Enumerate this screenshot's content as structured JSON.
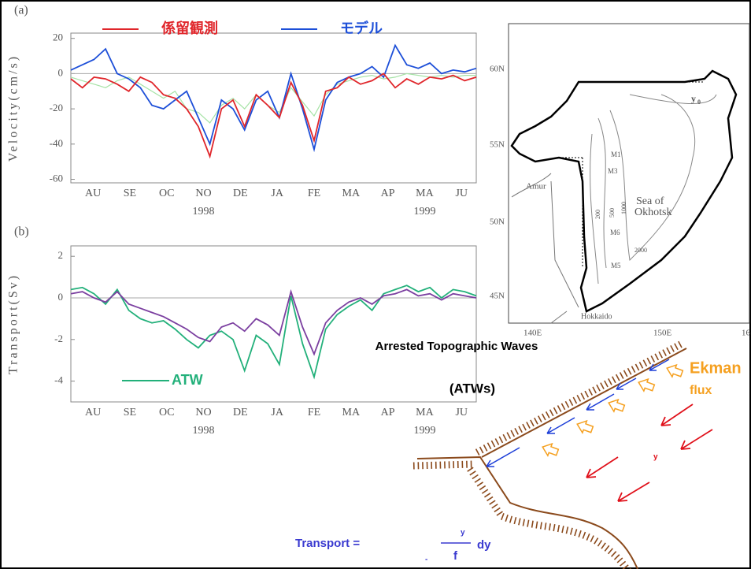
{
  "chart_a": {
    "type": "line",
    "label": "(a)",
    "y_label": "Velocity(cm/s)",
    "ylim": [
      -62,
      23
    ],
    "yticks": [
      -60,
      -40,
      -20,
      0,
      20
    ],
    "months": [
      "AU",
      "SE",
      "OC",
      "NO",
      "DE",
      "JA",
      "FE",
      "MA",
      "AP",
      "MA",
      "JU"
    ],
    "years": [
      "1998",
      "1999"
    ],
    "series": [
      {
        "name": "係留観測",
        "color": "#e0262b",
        "values": [
          -3,
          -8,
          -2,
          -3,
          -6,
          -10,
          -2,
          -5,
          -12,
          -14,
          -20,
          -30,
          -47,
          -20,
          -15,
          -30,
          -12,
          -18,
          -25,
          -5,
          -18,
          -38,
          -10,
          -8,
          -2,
          -6,
          -4,
          0,
          -8,
          -3,
          -6,
          -2,
          -3,
          -1,
          -4,
          -2
        ]
      },
      {
        "name": "モデル",
        "color": "#1d4fd8",
        "values": [
          2,
          5,
          8,
          14,
          0,
          -3,
          -8,
          -18,
          -20,
          -15,
          -10,
          -25,
          -40,
          -15,
          -20,
          -32,
          -15,
          -10,
          -25,
          0,
          -20,
          -43,
          -15,
          -5,
          -2,
          0,
          4,
          -2,
          16,
          5,
          3,
          6,
          0,
          2,
          1,
          3
        ]
      },
      {
        "color": "#a6e3a6",
        "values": [
          -2,
          -4,
          -6,
          -8,
          -4,
          -2,
          -6,
          -10,
          -14,
          -10,
          -20,
          -22,
          -28,
          -18,
          -14,
          -20,
          -12,
          -18,
          -22,
          -8,
          -16,
          -24,
          -12,
          -6,
          -4,
          -2,
          -1,
          -3,
          -2,
          0,
          -1,
          -2,
          -1,
          -2,
          -1,
          -1
        ]
      }
    ]
  },
  "chart_b": {
    "type": "line",
    "label": "(b)",
    "y_label": "Transport(Sv)",
    "ylim": [
      -5,
      2.5
    ],
    "yticks": [
      -4,
      -2,
      0,
      2
    ],
    "months": [
      "AU",
      "SE",
      "OC",
      "NO",
      "DE",
      "JA",
      "FE",
      "MA",
      "AP",
      "MA",
      "JU"
    ],
    "years": [
      "1998",
      "1999"
    ],
    "series": [
      {
        "color": "#7b3fa0",
        "values": [
          0.2,
          0.3,
          0,
          -0.2,
          0.3,
          -0.3,
          -0.5,
          -0.7,
          -0.9,
          -1.2,
          -1.5,
          -1.9,
          -2.1,
          -1.4,
          -1.2,
          -1.6,
          -1,
          -1.3,
          -1.8,
          0.3,
          -1.4,
          -2.7,
          -1.2,
          -0.6,
          -0.2,
          0,
          -0.3,
          0.1,
          0.2,
          0.4,
          0.1,
          0.2,
          -0.1,
          0.2,
          0.1,
          0
        ]
      },
      {
        "name": "ATW",
        "color": "#22b07a",
        "values": [
          0.4,
          0.5,
          0.2,
          -0.3,
          0.4,
          -0.6,
          -1,
          -1.2,
          -1.1,
          -1.5,
          -2,
          -2.4,
          -1.8,
          -1.6,
          -2,
          -3.5,
          -1.8,
          -2.2,
          -3.2,
          0.1,
          -2.2,
          -3.8,
          -1.5,
          -0.8,
          -0.4,
          -0.1,
          -0.6,
          0.2,
          0.4,
          0.6,
          0.3,
          0.5,
          0,
          0.4,
          0.3,
          0.1
        ]
      }
    ]
  },
  "map": {
    "lat_labels": [
      "60N",
      "55N",
      "50N",
      "45N"
    ],
    "lon_labels": [
      "140E",
      "150E",
      "16"
    ],
    "places": [
      "Amur",
      "Sea of",
      "Okhotsk",
      "Hokkaido"
    ],
    "stations": [
      "M1",
      "M3",
      "M6",
      "M5"
    ],
    "y_mark": "y",
    "y_sub": "0",
    "contours": [
      "200",
      "500",
      "1000",
      "2000"
    ]
  },
  "diagram": {
    "title": "Arrested Topographic Waves",
    "abbr": "(ATWs)",
    "ekman": "Ekman",
    "flux": "flux",
    "tau_y": "y",
    "formula": {
      "lhs": "Transport =",
      "num": "y",
      "den": "f",
      "dy": "dy",
      "minus": "-"
    }
  }
}
